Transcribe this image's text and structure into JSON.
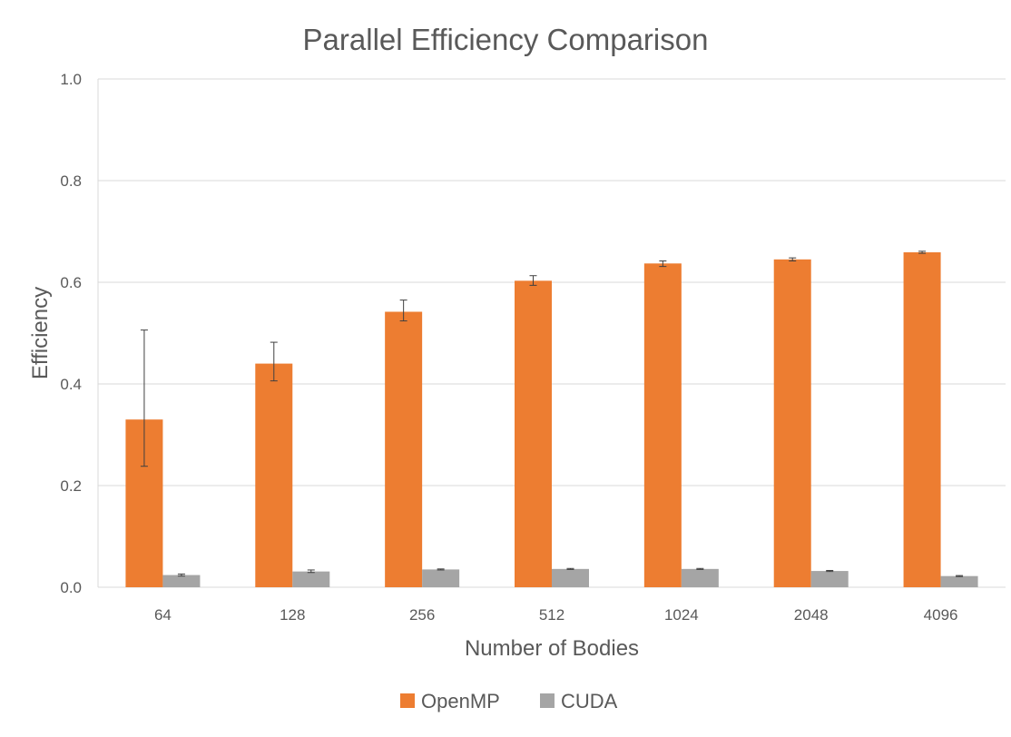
{
  "chart_data": {
    "type": "bar",
    "title": "Parallel Efficiency Comparison",
    "xlabel": "Number of Bodies",
    "ylabel": "Efficiency",
    "categories": [
      "64",
      "128",
      "256",
      "512",
      "1024",
      "2048",
      "4096"
    ],
    "ylim": [
      0,
      1.0
    ],
    "yticks": [
      "0.0",
      "0.2",
      "0.4",
      "0.6",
      "0.8",
      "1.0"
    ],
    "grid": true,
    "legend_position": "bottom",
    "series": [
      {
        "name": "OpenMP",
        "color": "#ED7D31",
        "values": [
          0.33,
          0.44,
          0.542,
          0.603,
          0.637,
          0.645,
          0.659
        ],
        "error_low": [
          0.238,
          0.406,
          0.524,
          0.594,
          0.631,
          0.642,
          0.657
        ],
        "error_high": [
          0.506,
          0.482,
          0.565,
          0.613,
          0.642,
          0.648,
          0.661
        ]
      },
      {
        "name": "CUDA",
        "color": "#A5A5A5",
        "values": [
          0.024,
          0.031,
          0.035,
          0.036,
          0.036,
          0.032,
          0.022
        ],
        "error_low": [
          0.022,
          0.029,
          0.034,
          0.035,
          0.035,
          0.031,
          0.021
        ],
        "error_high": [
          0.026,
          0.034,
          0.036,
          0.037,
          0.037,
          0.033,
          0.023
        ]
      }
    ]
  }
}
